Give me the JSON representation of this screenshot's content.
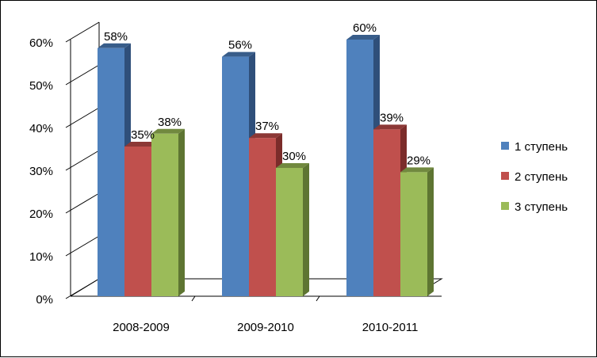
{
  "chart_data": {
    "type": "bar",
    "categories": [
      "2008-2009",
      "2009-2010",
      "2010-2011"
    ],
    "series": [
      {
        "name": "1 ступень",
        "values": [
          58,
          56,
          60
        ],
        "color": "#4F81BD",
        "dark": "#2F4F7A",
        "top": "#385D8A"
      },
      {
        "name": "2 ступень",
        "values": [
          35,
          37,
          39
        ],
        "color": "#C0504D",
        "dark": "#7B2C2A",
        "top": "#8C3836"
      },
      {
        "name": "3 ступень",
        "values": [
          38,
          30,
          29
        ],
        "color": "#9BBB59",
        "dark": "#5E7532",
        "top": "#71893F"
      }
    ],
    "y_ticks": [
      0,
      10,
      20,
      30,
      40,
      50,
      60
    ],
    "y_tick_labels": [
      "0%",
      "10%",
      "20%",
      "30%",
      "40%",
      "50%",
      "60%"
    ],
    "data_labels": [
      [
        "58%",
        "56%",
        "60%"
      ],
      [
        "35%",
        "37%",
        "39%"
      ],
      [
        "38%",
        "30%",
        "29%"
      ]
    ],
    "ylim": [
      0,
      60
    ],
    "grid": false,
    "legend_position": "right",
    "style": "3d-clustered-column"
  }
}
